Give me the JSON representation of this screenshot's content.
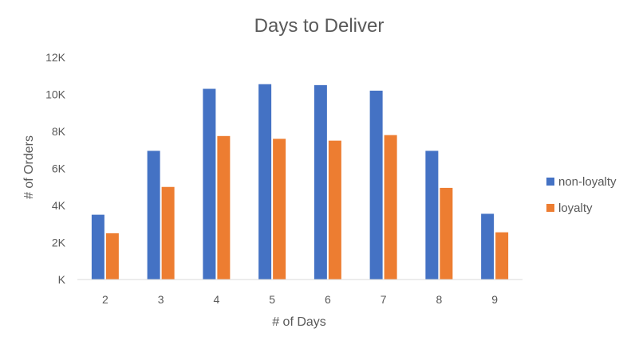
{
  "chart_data": {
    "type": "bar",
    "title": "Days to Deliver",
    "xlabel": "# of Days",
    "ylabel": "# of Orders",
    "categories": [
      "2",
      "3",
      "4",
      "5",
      "6",
      "7",
      "8",
      "9"
    ],
    "series": [
      {
        "name": "non-loyalty",
        "color": "#4472C4",
        "values": [
          3500,
          6950,
          10300,
          10550,
          10500,
          10200,
          6950,
          3550
        ]
      },
      {
        "name": "loyalty",
        "color": "#ED7D31",
        "values": [
          2500,
          5000,
          7750,
          7600,
          7500,
          7800,
          4950,
          2550
        ]
      }
    ],
    "ylim": [
      0,
      12000
    ],
    "yticks": [
      0,
      2000,
      4000,
      6000,
      8000,
      10000,
      12000
    ],
    "ytick_labels": [
      "K",
      "2K",
      "4K",
      "6K",
      "8K",
      "10K",
      "12K"
    ],
    "grid": false,
    "legend_position": "right"
  }
}
